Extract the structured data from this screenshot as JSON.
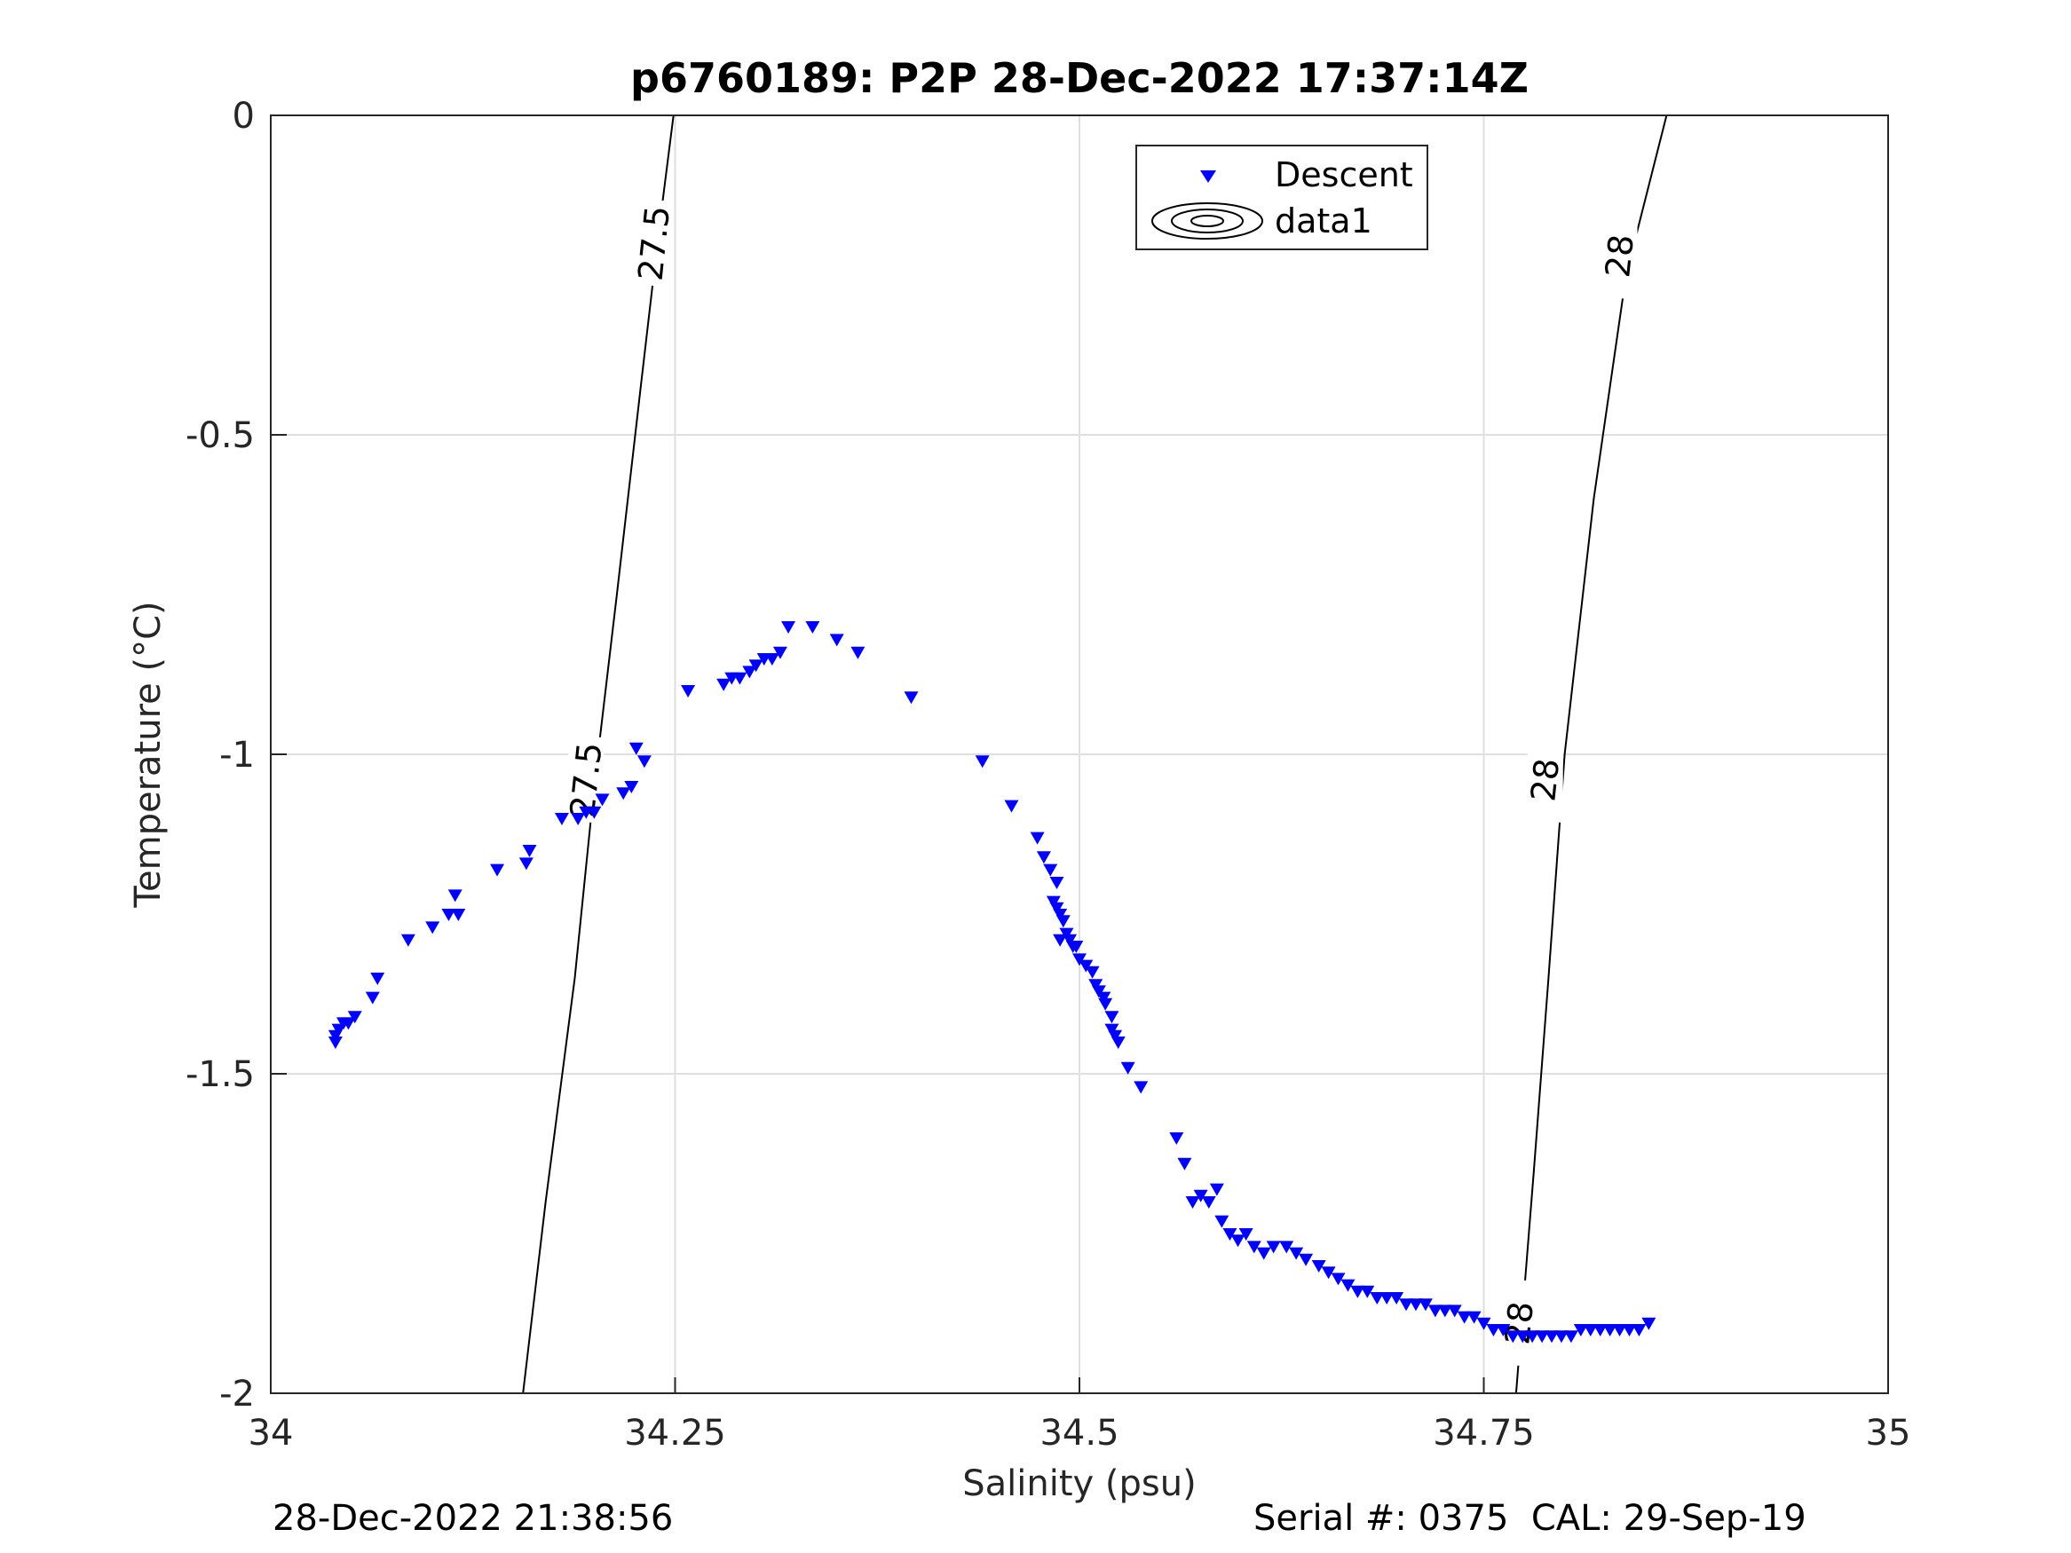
{
  "chart_data": {
    "type": "scatter",
    "title": "p6760189: P2P 28-Dec-2022 17:37:14Z",
    "xlabel": "Salinity (psu)",
    "ylabel": "Temperature (°C)",
    "xlim": [
      34,
      35
    ],
    "ylim": [
      -2,
      0
    ],
    "xticks": [
      {
        "value": 34,
        "label": "34"
      },
      {
        "value": 34.25,
        "label": "34.25"
      },
      {
        "value": 34.5,
        "label": "34.5"
      },
      {
        "value": 34.75,
        "label": "34.75"
      },
      {
        "value": 35,
        "label": "35"
      }
    ],
    "yticks": [
      {
        "value": 0,
        "label": "0"
      },
      {
        "value": -0.5,
        "label": "-0.5"
      },
      {
        "value": -1,
        "label": "-1"
      },
      {
        "value": -1.5,
        "label": "-1.5"
      },
      {
        "value": -2,
        "label": "-2"
      }
    ],
    "grid": true,
    "legend": {
      "location": "top-right",
      "entries": [
        {
          "label": "Descent",
          "marker": "triangle-down",
          "color": "#0000ff"
        },
        {
          "label": "data1",
          "marker": "contour",
          "color": "#000000"
        }
      ]
    },
    "series": [
      {
        "name": "Descent",
        "marker": "triangle-down",
        "color": "#0000ff",
        "points": [
          [
            34.04,
            -1.45
          ],
          [
            34.04,
            -1.44
          ],
          [
            34.042,
            -1.43
          ],
          [
            34.045,
            -1.42
          ],
          [
            34.048,
            -1.42
          ],
          [
            34.052,
            -1.41
          ],
          [
            34.063,
            -1.38
          ],
          [
            34.066,
            -1.35
          ],
          [
            34.085,
            -1.29
          ],
          [
            34.1,
            -1.27
          ],
          [
            34.11,
            -1.25
          ],
          [
            34.116,
            -1.25
          ],
          [
            34.114,
            -1.22
          ],
          [
            34.14,
            -1.18
          ],
          [
            34.158,
            -1.17
          ],
          [
            34.16,
            -1.15
          ],
          [
            34.18,
            -1.1
          ],
          [
            34.19,
            -1.1
          ],
          [
            34.195,
            -1.09
          ],
          [
            34.2,
            -1.09
          ],
          [
            34.205,
            -1.07
          ],
          [
            34.218,
            -1.06
          ],
          [
            34.223,
            -1.05
          ],
          [
            34.226,
            -0.99
          ],
          [
            34.231,
            -1.01
          ],
          [
            34.258,
            -0.9
          ],
          [
            34.28,
            -0.89
          ],
          [
            34.285,
            -0.88
          ],
          [
            34.29,
            -0.88
          ],
          [
            34.296,
            -0.87
          ],
          [
            34.3,
            -0.86
          ],
          [
            34.305,
            -0.85
          ],
          [
            34.31,
            -0.85
          ],
          [
            34.315,
            -0.84
          ],
          [
            34.32,
            -0.8
          ],
          [
            34.335,
            -0.8
          ],
          [
            34.35,
            -0.82
          ],
          [
            34.363,
            -0.84
          ],
          [
            34.396,
            -0.91
          ],
          [
            34.44,
            -1.01
          ],
          [
            34.458,
            -1.08
          ],
          [
            34.474,
            -1.13
          ],
          [
            34.478,
            -1.16
          ],
          [
            34.482,
            -1.18
          ],
          [
            34.486,
            -1.2
          ],
          [
            34.484,
            -1.23
          ],
          [
            34.486,
            -1.24
          ],
          [
            34.488,
            -1.25
          ],
          [
            34.49,
            -1.26
          ],
          [
            34.492,
            -1.28
          ],
          [
            34.488,
            -1.29
          ],
          [
            34.494,
            -1.29
          ],
          [
            34.496,
            -1.3
          ],
          [
            34.498,
            -1.3
          ],
          [
            34.5,
            -1.32
          ],
          [
            34.504,
            -1.33
          ],
          [
            34.508,
            -1.34
          ],
          [
            34.51,
            -1.36
          ],
          [
            34.512,
            -1.37
          ],
          [
            34.515,
            -1.38
          ],
          [
            34.516,
            -1.39
          ],
          [
            34.52,
            -1.41
          ],
          [
            34.52,
            -1.43
          ],
          [
            34.522,
            -1.44
          ],
          [
            34.524,
            -1.45
          ],
          [
            34.53,
            -1.49
          ],
          [
            34.538,
            -1.52
          ],
          [
            34.56,
            -1.6
          ],
          [
            34.565,
            -1.64
          ],
          [
            34.57,
            -1.7
          ],
          [
            34.575,
            -1.69
          ],
          [
            34.58,
            -1.7
          ],
          [
            34.585,
            -1.68
          ],
          [
            34.588,
            -1.73
          ],
          [
            34.593,
            -1.75
          ],
          [
            34.598,
            -1.76
          ],
          [
            34.603,
            -1.75
          ],
          [
            34.608,
            -1.77
          ],
          [
            34.614,
            -1.78
          ],
          [
            34.62,
            -1.77
          ],
          [
            34.628,
            -1.77
          ],
          [
            34.634,
            -1.78
          ],
          [
            34.64,
            -1.79
          ],
          [
            34.648,
            -1.8
          ],
          [
            34.654,
            -1.81
          ],
          [
            34.66,
            -1.82
          ],
          [
            34.666,
            -1.83
          ],
          [
            34.672,
            -1.84
          ],
          [
            34.678,
            -1.84
          ],
          [
            34.684,
            -1.85
          ],
          [
            34.69,
            -1.85
          ],
          [
            34.696,
            -1.85
          ],
          [
            34.702,
            -1.86
          ],
          [
            34.708,
            -1.86
          ],
          [
            34.714,
            -1.86
          ],
          [
            34.72,
            -1.87
          ],
          [
            34.726,
            -1.87
          ],
          [
            34.732,
            -1.87
          ],
          [
            34.738,
            -1.88
          ],
          [
            34.744,
            -1.88
          ],
          [
            34.75,
            -1.89
          ],
          [
            34.756,
            -1.9
          ],
          [
            34.762,
            -1.9
          ],
          [
            34.768,
            -1.91
          ],
          [
            34.774,
            -1.91
          ],
          [
            34.78,
            -1.91
          ],
          [
            34.786,
            -1.91
          ],
          [
            34.792,
            -1.91
          ],
          [
            34.798,
            -1.91
          ],
          [
            34.804,
            -1.91
          ],
          [
            34.81,
            -1.9
          ],
          [
            34.816,
            -1.9
          ],
          [
            34.822,
            -1.9
          ],
          [
            34.828,
            -1.9
          ],
          [
            34.834,
            -1.9
          ],
          [
            34.84,
            -1.9
          ],
          [
            34.846,
            -1.9
          ],
          [
            34.852,
            -1.89
          ]
        ]
      }
    ],
    "contours": [
      {
        "label": "27.5",
        "line": [
          [
            34.156,
            -2.0
          ],
          [
            34.17,
            -1.7
          ],
          [
            34.188,
            -1.35
          ],
          [
            34.2,
            -1.05
          ],
          [
            34.214,
            -0.75
          ],
          [
            34.229,
            -0.42
          ],
          [
            34.24,
            -0.18
          ],
          [
            34.249,
            0.0
          ]
        ],
        "label_positions": [
          [
            34.195,
            -1.04
          ],
          [
            34.237,
            -0.2
          ]
        ]
      },
      {
        "label": "28",
        "line": [
          [
            34.77,
            -2.0
          ],
          [
            34.781,
            -1.65
          ],
          [
            34.79,
            -1.35
          ],
          [
            34.8,
            -1.0
          ],
          [
            34.818,
            -0.6
          ],
          [
            34.838,
            -0.25
          ],
          [
            34.863,
            0.0
          ]
        ],
        "label_positions": [
          [
            34.772,
            -1.89
          ],
          [
            34.788,
            -1.04
          ],
          [
            34.834,
            -0.22
          ]
        ]
      }
    ]
  },
  "footer": {
    "left": "28-Dec-2022 21:38:56",
    "right": "Serial #: 0375  CAL: 29-Sep-19"
  }
}
